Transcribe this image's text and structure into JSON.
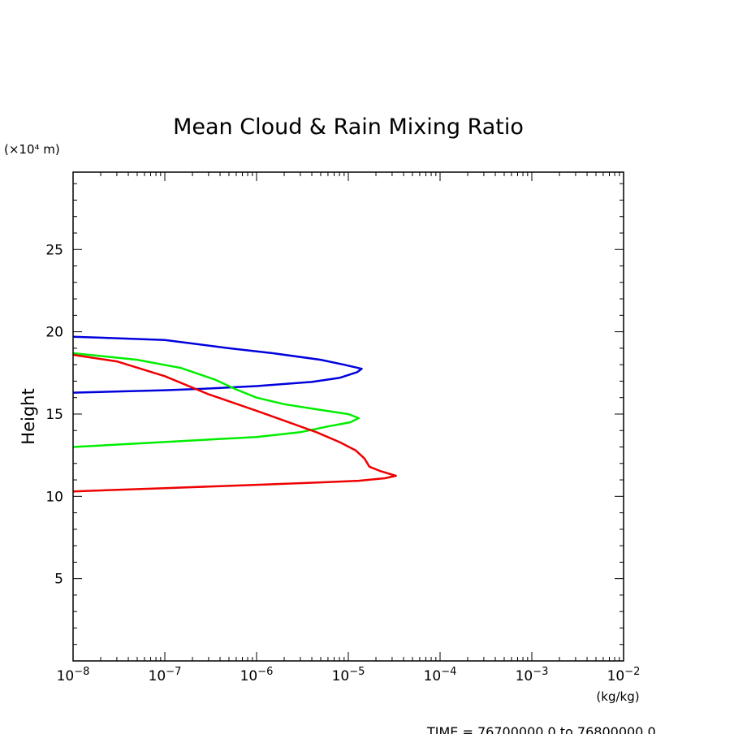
{
  "chart_data": {
    "type": "line",
    "title": "Mean Cloud & Rain Mixing Ratio",
    "xlabel": "(kg/kg)",
    "ylabel": "Height",
    "yunit": "(×10⁴ m)",
    "footer": "TIME = 76700000.0 to 76800000.0",
    "xscale": "log",
    "xlim": [
      1e-08,
      0.01
    ],
    "ylim": [
      0,
      29.7
    ],
    "x_ticks": [
      {
        "mant": "10",
        "exp": "−8",
        "value": 1e-08
      },
      {
        "mant": "10",
        "exp": "−7",
        "value": 1e-07
      },
      {
        "mant": "10",
        "exp": "−6",
        "value": 1e-06
      },
      {
        "mant": "10",
        "exp": "−5",
        "value": 1e-05
      },
      {
        "mant": "10",
        "exp": "−4",
        "value": 0.0001
      },
      {
        "mant": "10",
        "exp": "−3",
        "value": 0.001
      },
      {
        "mant": "10",
        "exp": "−2",
        "value": 0.01
      }
    ],
    "y_ticks": [
      5,
      10,
      15,
      20,
      25
    ],
    "grid": false,
    "legend": "none",
    "series": [
      {
        "color": "#0000dd",
        "points": [
          [
            1e-08,
            19.7
          ],
          [
            1e-07,
            19.5
          ],
          [
            5e-07,
            19.0
          ],
          [
            1.5e-06,
            18.7
          ],
          [
            5e-06,
            18.3
          ],
          [
            9e-06,
            18.0
          ],
          [
            1.4e-05,
            17.75
          ],
          [
            1.25e-05,
            17.55
          ],
          [
            8e-06,
            17.2
          ],
          [
            4e-06,
            16.95
          ],
          [
            1e-06,
            16.7
          ],
          [
            3e-07,
            16.55
          ],
          [
            1e-07,
            16.45
          ],
          [
            1e-08,
            16.3
          ]
        ]
      },
      {
        "color": "#00ee00",
        "points": [
          [
            1e-08,
            18.7
          ],
          [
            5e-08,
            18.3
          ],
          [
            1.5e-07,
            17.8
          ],
          [
            3.5e-07,
            17.1
          ],
          [
            6e-07,
            16.5
          ],
          [
            1e-06,
            16.0
          ],
          [
            2e-06,
            15.6
          ],
          [
            5e-06,
            15.25
          ],
          [
            1e-05,
            15.0
          ],
          [
            1.3e-05,
            14.75
          ],
          [
            1.05e-05,
            14.5
          ],
          [
            6e-06,
            14.25
          ],
          [
            3e-06,
            13.9
          ],
          [
            1e-06,
            13.6
          ],
          [
            3e-07,
            13.45
          ],
          [
            1e-07,
            13.3
          ],
          [
            1e-08,
            13.0
          ]
        ]
      },
      {
        "color": "#ee0000",
        "points": [
          [
            1e-08,
            18.6
          ],
          [
            3e-08,
            18.2
          ],
          [
            1e-07,
            17.3
          ],
          [
            3e-07,
            16.2
          ],
          [
            1e-06,
            15.2
          ],
          [
            2e-06,
            14.6
          ],
          [
            4.5e-06,
            13.9
          ],
          [
            8e-06,
            13.3
          ],
          [
            1.2e-05,
            12.8
          ],
          [
            1.5e-05,
            12.3
          ],
          [
            1.7e-05,
            11.8
          ],
          [
            2.2e-05,
            11.55
          ],
          [
            3.3e-05,
            11.25
          ],
          [
            2.5e-05,
            11.1
          ],
          [
            1.3e-05,
            10.95
          ],
          [
            5e-06,
            10.85
          ],
          [
            1e-06,
            10.7
          ],
          [
            1e-07,
            10.5
          ],
          [
            1e-08,
            10.3
          ]
        ]
      }
    ]
  }
}
